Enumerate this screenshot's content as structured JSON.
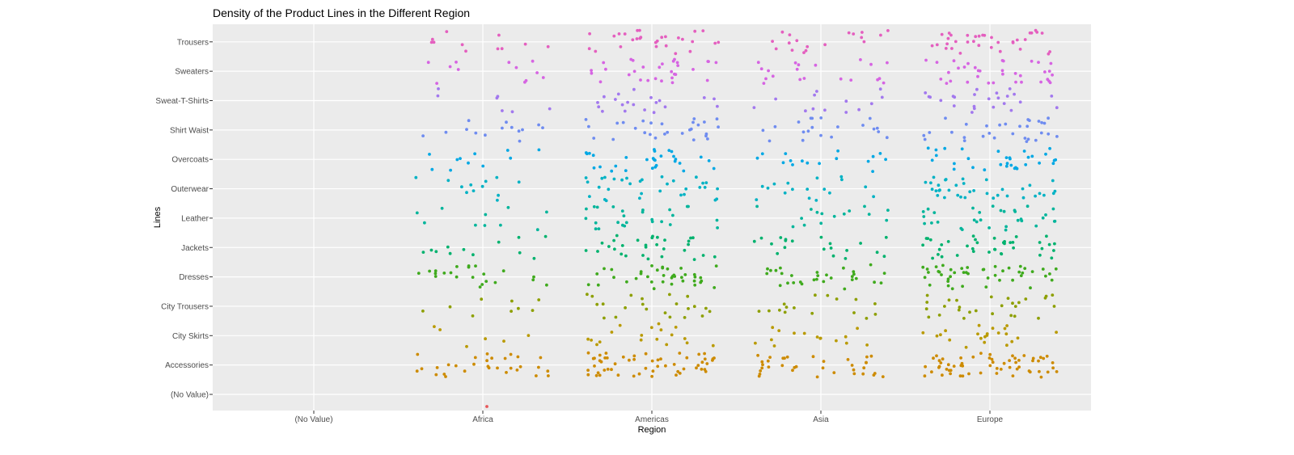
{
  "chart_data": {
    "type": "scatter",
    "title": "Density of the Product Lines in the Different Region",
    "xlabel": "Region",
    "ylabel": "Lines",
    "categories_x": [
      "(No Value)",
      "Africa",
      "Americas",
      "Asia",
      "Europe"
    ],
    "categories_y": [
      "(No Value)",
      "Accessories",
      "City Skirts",
      "City Trousers",
      "Dresses",
      "Jackets",
      "Leather",
      "Outerwear",
      "Overcoats",
      "Shirt Waist",
      "Sweat-T-Shirts",
      "Sweaters",
      "Trousers"
    ],
    "jitter": "horizontal and vertical jitter within each region/line cell",
    "grid": true,
    "legend": "none",
    "background_color": "#ebebeb",
    "grid_color": "#ffffff",
    "series": [
      {
        "line": "(No Value)",
        "color": "#e8575a",
        "counts": [
          0,
          1,
          0,
          0,
          0
        ]
      },
      {
        "line": "Accessories",
        "color": "#cd8b00",
        "counts": [
          0,
          30,
          55,
          35,
          60
        ]
      },
      {
        "line": "City Skirts",
        "color": "#b99a00",
        "counts": [
          0,
          6,
          18,
          15,
          22
        ]
      },
      {
        "line": "City Trousers",
        "color": "#8d9f00",
        "counts": [
          0,
          9,
          22,
          16,
          28
        ]
      },
      {
        "line": "Dresses",
        "color": "#3faa1d",
        "counts": [
          0,
          22,
          38,
          30,
          45
        ]
      },
      {
        "line": "Jackets",
        "color": "#00b26e",
        "counts": [
          0,
          12,
          30,
          20,
          38
        ]
      },
      {
        "line": "Leather",
        "color": "#00b59b",
        "counts": [
          0,
          10,
          26,
          15,
          32
        ]
      },
      {
        "line": "Outerwear",
        "color": "#00b2c4",
        "counts": [
          0,
          12,
          32,
          17,
          36
        ]
      },
      {
        "line": "Overcoats",
        "color": "#00a8e4",
        "counts": [
          0,
          11,
          30,
          16,
          32
        ]
      },
      {
        "line": "Shirt Waist",
        "color": "#6f8cf0",
        "counts": [
          0,
          14,
          28,
          20,
          30
        ]
      },
      {
        "line": "Sweat-T-Shirts",
        "color": "#a278ee",
        "counts": [
          0,
          7,
          20,
          13,
          24
        ]
      },
      {
        "line": "Sweaters",
        "color": "#d664e2",
        "counts": [
          0,
          12,
          30,
          20,
          35
        ]
      },
      {
        "line": "Trousers",
        "color": "#e45fbf",
        "counts": [
          0,
          11,
          28,
          18,
          35
        ]
      }
    ]
  }
}
